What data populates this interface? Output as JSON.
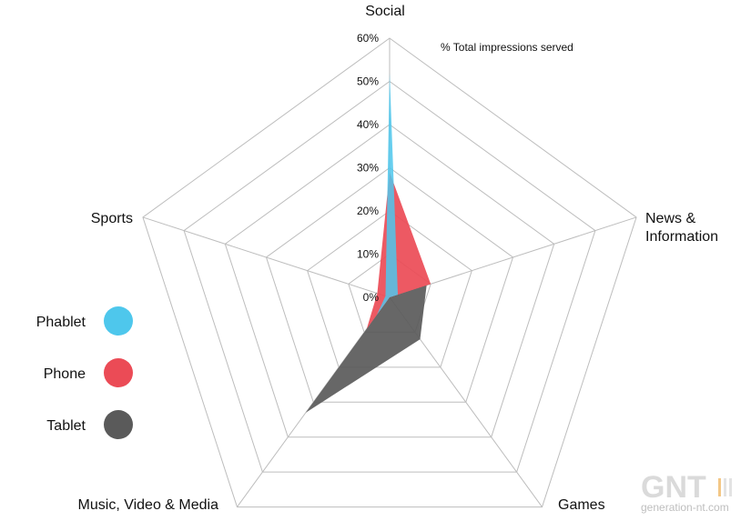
{
  "chart_data": {
    "type": "radar",
    "subtitle": "% Total impressions served",
    "axes": [
      "Social",
      "News & Information",
      "Games",
      "Music, Video & Media",
      "Sports"
    ],
    "ticks": [
      "0%",
      "10%",
      "20%",
      "30%",
      "40%",
      "50%",
      "60%"
    ],
    "range": [
      0,
      60
    ],
    "unit": "%",
    "grid": true,
    "legend_position": "left",
    "series": [
      {
        "name": "Tablet",
        "color": "#5a5a5a",
        "values": [
          0,
          9,
          12,
          33,
          0
        ]
      },
      {
        "name": "Phone",
        "color": "#eb4b56",
        "values": [
          29,
          10,
          0,
          9,
          3
        ]
      },
      {
        "name": "Phablet",
        "color": "#4ec7ec",
        "values": [
          52,
          2,
          0,
          5,
          1
        ]
      }
    ],
    "legend_order": [
      "Phablet",
      "Phone",
      "Tablet"
    ]
  },
  "watermark": {
    "brand": "GNT",
    "site": "generation-nt.com"
  }
}
